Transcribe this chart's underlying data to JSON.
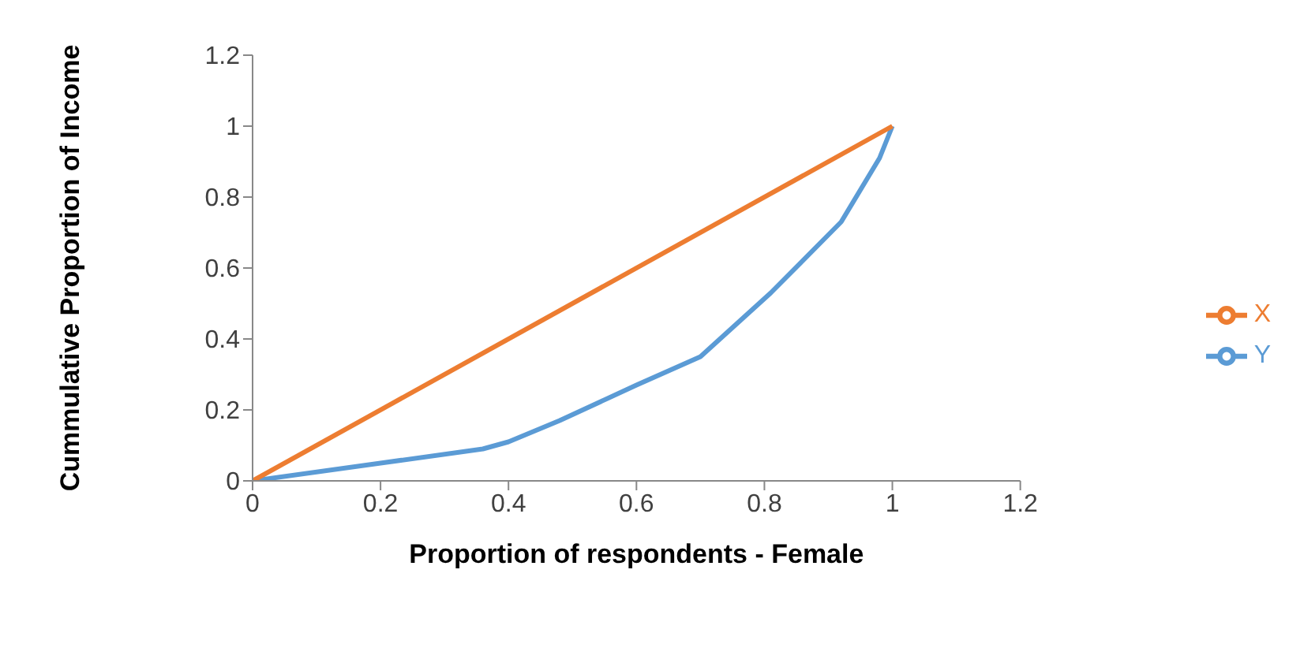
{
  "chart_data": {
    "type": "line",
    "xlabel": "Proportion of respondents - Female",
    "ylabel": "Cummulative Proportion of Income",
    "series": [
      {
        "name": "Y",
        "color": "#5b9bd5",
        "x": [
          0,
          0.2,
          0.36,
          0.4,
          0.48,
          0.6,
          0.7,
          0.81,
          0.92,
          0.98,
          1
        ],
        "values": [
          0,
          0.05,
          0.09,
          0.11,
          0.17,
          0.27,
          0.35,
          0.53,
          0.73,
          0.91,
          1
        ]
      },
      {
        "name": "X",
        "color": "#ed7d31",
        "x": [
          0,
          1
        ],
        "values": [
          0,
          1
        ]
      }
    ],
    "xlim": [
      0,
      1.2
    ],
    "xticks": [
      0,
      0.2,
      0.4,
      0.6,
      0.8,
      1,
      1.2
    ],
    "ylim": [
      0,
      1.2
    ],
    "yticks": [
      0,
      0.2,
      0.4,
      0.6,
      0.8,
      1,
      1.2
    ],
    "legend": "right",
    "marker": "none",
    "line_style": "solid",
    "grid": false
  }
}
